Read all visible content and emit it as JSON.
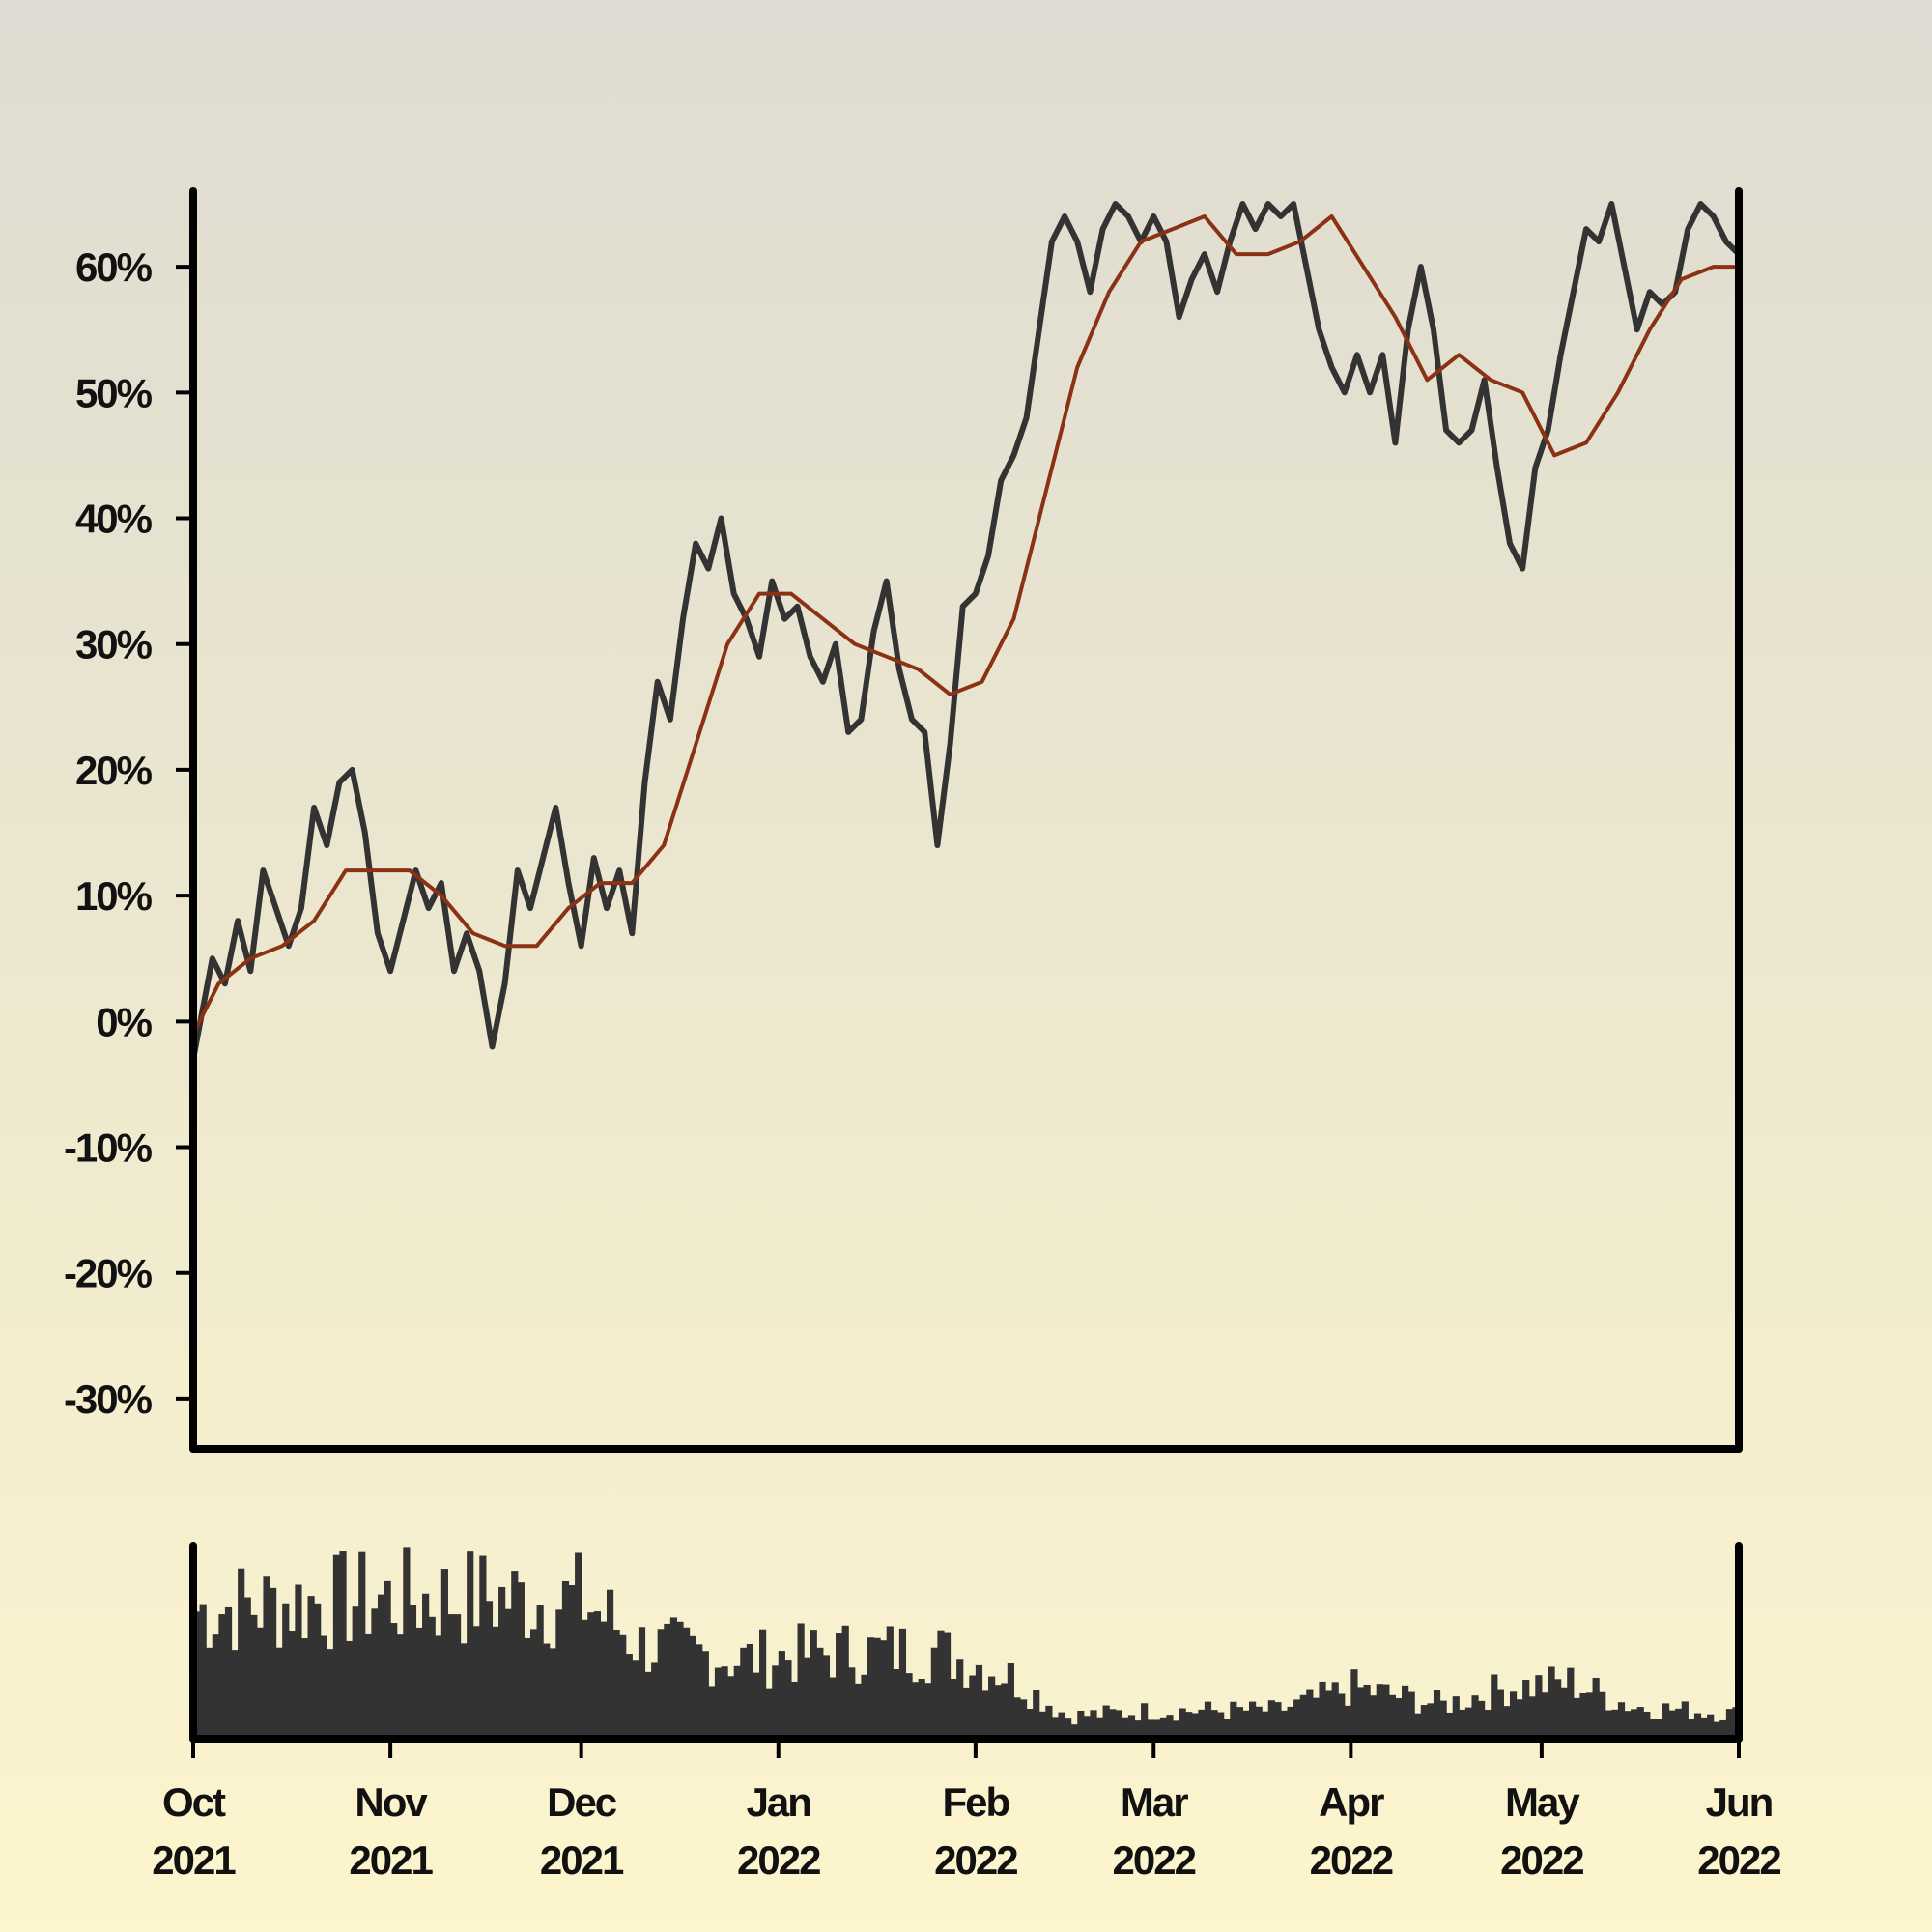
{
  "chart_data": {
    "type": "line",
    "title": "",
    "xlabel": "",
    "ylabel": "",
    "ylim": [
      -0.34,
      0.66
    ],
    "xlim": [
      "2021-10-01",
      "2022-06-01"
    ],
    "y_ticks": [
      -0.3,
      -0.2,
      -0.1,
      0.0,
      0.1,
      0.2,
      0.3,
      0.4,
      0.5,
      0.6
    ],
    "y_tick_labels": [
      "-30%",
      "-20%",
      "-10%",
      "0%",
      "10%",
      "20%",
      "30%",
      "40%",
      "50%",
      "60%"
    ],
    "x_ticks": [
      {
        "date": "2021-10-01",
        "month": "Oct",
        "year": "2021"
      },
      {
        "date": "2021-11-01",
        "month": "Nov",
        "year": "2021"
      },
      {
        "date": "2021-12-01",
        "month": "Dec",
        "year": "2021"
      },
      {
        "date": "2022-01-01",
        "month": "Jan",
        "year": "2022"
      },
      {
        "date": "2022-02-01",
        "month": "Feb",
        "year": "2022"
      },
      {
        "date": "2022-03-01",
        "month": "Mar",
        "year": "2022"
      },
      {
        "date": "2022-04-01",
        "month": "Apr",
        "year": "2022"
      },
      {
        "date": "2022-05-01",
        "month": "May",
        "year": "2022"
      },
      {
        "date": "2022-06-01",
        "month": "Jun",
        "year": "2022"
      }
    ],
    "grid": false,
    "legend": "none",
    "series": [
      {
        "color": "#333333",
        "points": [
          [
            "2021-10-01",
            -0.03
          ],
          [
            "2021-10-04",
            0.05
          ],
          [
            "2021-10-06",
            0.03
          ],
          [
            "2021-10-08",
            0.08
          ],
          [
            "2021-10-10",
            0.04
          ],
          [
            "2021-10-12",
            0.12
          ],
          [
            "2021-10-14",
            0.09
          ],
          [
            "2021-10-16",
            0.06
          ],
          [
            "2021-10-18",
            0.09
          ],
          [
            "2021-10-20",
            0.17
          ],
          [
            "2021-10-22",
            0.14
          ],
          [
            "2021-10-24",
            0.19
          ],
          [
            "2021-10-26",
            0.2
          ],
          [
            "2021-10-28",
            0.15
          ],
          [
            "2021-10-30",
            0.07
          ],
          [
            "2021-11-01",
            0.04
          ],
          [
            "2021-11-03",
            0.08
          ],
          [
            "2021-11-05",
            0.12
          ],
          [
            "2021-11-07",
            0.09
          ],
          [
            "2021-11-09",
            0.11
          ],
          [
            "2021-11-11",
            0.04
          ],
          [
            "2021-11-13",
            0.07
          ],
          [
            "2021-11-15",
            0.04
          ],
          [
            "2021-11-17",
            -0.02
          ],
          [
            "2021-11-19",
            0.03
          ],
          [
            "2021-11-21",
            0.12
          ],
          [
            "2021-11-23",
            0.09
          ],
          [
            "2021-11-25",
            0.13
          ],
          [
            "2021-11-27",
            0.17
          ],
          [
            "2021-11-29",
            0.11
          ],
          [
            "2021-12-01",
            0.06
          ],
          [
            "2021-12-03",
            0.13
          ],
          [
            "2021-12-05",
            0.09
          ],
          [
            "2021-12-07",
            0.12
          ],
          [
            "2021-12-09",
            0.07
          ],
          [
            "2021-12-11",
            0.19
          ],
          [
            "2021-12-13",
            0.27
          ],
          [
            "2021-12-15",
            0.24
          ],
          [
            "2021-12-17",
            0.32
          ],
          [
            "2021-12-19",
            0.38
          ],
          [
            "2021-12-21",
            0.36
          ],
          [
            "2021-12-23",
            0.4
          ],
          [
            "2021-12-25",
            0.34
          ],
          [
            "2021-12-27",
            0.32
          ],
          [
            "2021-12-29",
            0.29
          ],
          [
            "2021-12-31",
            0.35
          ],
          [
            "2022-01-02",
            0.32
          ],
          [
            "2022-01-04",
            0.33
          ],
          [
            "2022-01-06",
            0.29
          ],
          [
            "2022-01-08",
            0.27
          ],
          [
            "2022-01-10",
            0.3
          ],
          [
            "2022-01-12",
            0.23
          ],
          [
            "2022-01-14",
            0.24
          ],
          [
            "2022-01-16",
            0.31
          ],
          [
            "2022-01-18",
            0.35
          ],
          [
            "2022-01-20",
            0.28
          ],
          [
            "2022-01-22",
            0.24
          ],
          [
            "2022-01-24",
            0.23
          ],
          [
            "2022-01-26",
            0.14
          ],
          [
            "2022-01-28",
            0.22
          ],
          [
            "2022-01-30",
            0.33
          ],
          [
            "2022-02-01",
            0.34
          ],
          [
            "2022-02-03",
            0.37
          ],
          [
            "2022-02-05",
            0.43
          ],
          [
            "2022-02-07",
            0.45
          ],
          [
            "2022-02-09",
            0.48
          ],
          [
            "2022-02-11",
            0.55
          ],
          [
            "2022-02-13",
            0.62
          ],
          [
            "2022-02-15",
            0.64
          ],
          [
            "2022-02-17",
            0.62
          ],
          [
            "2022-02-19",
            0.58
          ],
          [
            "2022-02-21",
            0.63
          ],
          [
            "2022-02-23",
            0.65
          ],
          [
            "2022-02-25",
            0.64
          ],
          [
            "2022-02-27",
            0.62
          ],
          [
            "2022-03-01",
            0.64
          ],
          [
            "2022-03-03",
            0.62
          ],
          [
            "2022-03-05",
            0.56
          ],
          [
            "2022-03-07",
            0.59
          ],
          [
            "2022-03-09",
            0.61
          ],
          [
            "2022-03-11",
            0.58
          ],
          [
            "2022-03-13",
            0.62
          ],
          [
            "2022-03-15",
            0.65
          ],
          [
            "2022-03-17",
            0.63
          ],
          [
            "2022-03-19",
            0.65
          ],
          [
            "2022-03-21",
            0.64
          ],
          [
            "2022-03-23",
            0.65
          ],
          [
            "2022-03-25",
            0.6
          ],
          [
            "2022-03-27",
            0.55
          ],
          [
            "2022-03-29",
            0.52
          ],
          [
            "2022-03-31",
            0.5
          ],
          [
            "2022-04-02",
            0.53
          ],
          [
            "2022-04-04",
            0.5
          ],
          [
            "2022-04-06",
            0.53
          ],
          [
            "2022-04-08",
            0.46
          ],
          [
            "2022-04-10",
            0.55
          ],
          [
            "2022-04-12",
            0.6
          ],
          [
            "2022-04-14",
            0.55
          ],
          [
            "2022-04-16",
            0.47
          ],
          [
            "2022-04-18",
            0.46
          ],
          [
            "2022-04-20",
            0.47
          ],
          [
            "2022-04-22",
            0.51
          ],
          [
            "2022-04-24",
            0.44
          ],
          [
            "2022-04-26",
            0.38
          ],
          [
            "2022-04-28",
            0.36
          ],
          [
            "2022-04-30",
            0.44
          ],
          [
            "2022-05-02",
            0.47
          ],
          [
            "2022-05-04",
            0.53
          ],
          [
            "2022-05-06",
            0.58
          ],
          [
            "2022-05-08",
            0.63
          ],
          [
            "2022-05-10",
            0.62
          ],
          [
            "2022-05-12",
            0.65
          ],
          [
            "2022-05-14",
            0.6
          ],
          [
            "2022-05-16",
            0.55
          ],
          [
            "2022-05-18",
            0.58
          ],
          [
            "2022-05-20",
            0.57
          ],
          [
            "2022-05-22",
            0.58
          ],
          [
            "2022-05-24",
            0.63
          ],
          [
            "2022-05-26",
            0.65
          ],
          [
            "2022-05-28",
            0.64
          ],
          [
            "2022-05-30",
            0.62
          ],
          [
            "2022-06-01",
            0.61
          ]
        ]
      },
      {
        "color": "#8b3214",
        "points": [
          [
            "2021-10-01",
            -0.01
          ],
          [
            "2021-10-05",
            0.03
          ],
          [
            "2021-10-10",
            0.05
          ],
          [
            "2021-10-15",
            0.06
          ],
          [
            "2021-10-20",
            0.08
          ],
          [
            "2021-10-25",
            0.12
          ],
          [
            "2021-10-30",
            0.12
          ],
          [
            "2021-11-04",
            0.12
          ],
          [
            "2021-11-09",
            0.1
          ],
          [
            "2021-11-14",
            0.07
          ],
          [
            "2021-11-19",
            0.06
          ],
          [
            "2021-11-24",
            0.06
          ],
          [
            "2021-11-29",
            0.09
          ],
          [
            "2021-12-04",
            0.11
          ],
          [
            "2021-12-09",
            0.11
          ],
          [
            "2021-12-14",
            0.14
          ],
          [
            "2021-12-19",
            0.22
          ],
          [
            "2021-12-24",
            0.3
          ],
          [
            "2021-12-29",
            0.34
          ],
          [
            "2022-01-03",
            0.34
          ],
          [
            "2022-01-08",
            0.32
          ],
          [
            "2022-01-13",
            0.3
          ],
          [
            "2022-01-18",
            0.29
          ],
          [
            "2022-01-23",
            0.28
          ],
          [
            "2022-01-28",
            0.26
          ],
          [
            "2022-02-02",
            0.27
          ],
          [
            "2022-02-07",
            0.32
          ],
          [
            "2022-02-12",
            0.42
          ],
          [
            "2022-02-17",
            0.52
          ],
          [
            "2022-02-22",
            0.58
          ],
          [
            "2022-02-27",
            0.62
          ],
          [
            "2022-03-04",
            0.63
          ],
          [
            "2022-03-09",
            0.64
          ],
          [
            "2022-03-14",
            0.61
          ],
          [
            "2022-03-19",
            0.61
          ],
          [
            "2022-03-24",
            0.62
          ],
          [
            "2022-03-29",
            0.64
          ],
          [
            "2022-04-03",
            0.6
          ],
          [
            "2022-04-08",
            0.56
          ],
          [
            "2022-04-13",
            0.51
          ],
          [
            "2022-04-18",
            0.53
          ],
          [
            "2022-04-23",
            0.51
          ],
          [
            "2022-04-28",
            0.5
          ],
          [
            "2022-05-03",
            0.45
          ],
          [
            "2022-05-08",
            0.46
          ],
          [
            "2022-05-13",
            0.5
          ],
          [
            "2022-05-18",
            0.55
          ],
          [
            "2022-05-23",
            0.59
          ],
          [
            "2022-05-28",
            0.6
          ],
          [
            "2022-06-01",
            0.6
          ]
        ]
      }
    ],
    "volume": {
      "color": "#333333",
      "profile": [
        [
          "2021-10-01",
          0.68
        ],
        [
          "2021-10-15",
          0.72
        ],
        [
          "2021-11-01",
          0.74
        ],
        [
          "2021-11-15",
          0.75
        ],
        [
          "2021-12-01",
          0.73
        ],
        [
          "2021-12-10",
          0.5
        ],
        [
          "2021-12-25",
          0.42
        ],
        [
          "2022-01-10",
          0.46
        ],
        [
          "2022-01-25",
          0.47
        ],
        [
          "2022-02-05",
          0.35
        ],
        [
          "2022-02-15",
          0.12
        ],
        [
          "2022-03-01",
          0.15
        ],
        [
          "2022-03-20",
          0.15
        ],
        [
          "2022-04-01",
          0.27
        ],
        [
          "2022-04-15",
          0.18
        ],
        [
          "2022-04-25",
          0.27
        ],
        [
          "2022-05-05",
          0.3
        ],
        [
          "2022-05-15",
          0.17
        ],
        [
          "2022-06-01",
          0.13
        ]
      ]
    }
  }
}
